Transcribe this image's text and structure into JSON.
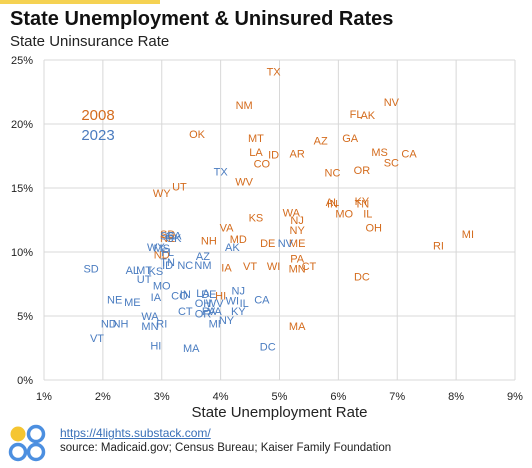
{
  "title": "State Unemployment & Uninsured Rates",
  "subtitle": "State Uninsurance Rate",
  "footer": {
    "link": "https://4lights.substack.com/",
    "source": "source: Madicaid.gov; Census Bureau; Kaiser Family Foundation"
  },
  "colors": {
    "2008": "#d46c1e",
    "2023": "#4a7cc0",
    "grid": "#d8d8d8",
    "logo_yellow": "#f5c531",
    "logo_blue": "#4c8fe0"
  },
  "chart_data": {
    "type": "scatter",
    "title": "State Unemployment & Uninsured Rates",
    "xlabel": "State Unemployment Rate",
    "ylabel": "State Uninsurance Rate",
    "xlim": [
      0.01,
      0.09
    ],
    "ylim": [
      0,
      0.25
    ],
    "x_ticks": [
      "1%",
      "2%",
      "3%",
      "4%",
      "5%",
      "6%",
      "7%",
      "8%",
      "9%"
    ],
    "y_ticks": [
      "0%",
      "5%",
      "10%",
      "15%",
      "20%",
      "25%"
    ],
    "grid": true,
    "legend_placement": "upper-left",
    "series": [
      {
        "name": "2008",
        "color": "#d46c1e",
        "points": [
          {
            "label": "TX",
            "x": 0.049,
            "y": 0.241
          },
          {
            "label": "NV",
            "x": 0.069,
            "y": 0.217
          },
          {
            "label": "NM",
            "x": 0.044,
            "y": 0.215
          },
          {
            "label": "FL",
            "x": 0.063,
            "y": 0.208
          },
          {
            "label": "AK",
            "x": 0.065,
            "y": 0.207
          },
          {
            "label": "OK",
            "x": 0.036,
            "y": 0.192
          },
          {
            "label": "MT",
            "x": 0.046,
            "y": 0.189
          },
          {
            "label": "GA",
            "x": 0.062,
            "y": 0.189
          },
          {
            "label": "AZ",
            "x": 0.057,
            "y": 0.187
          },
          {
            "label": "MS",
            "x": 0.067,
            "y": 0.178
          },
          {
            "label": "LA",
            "x": 0.046,
            "y": 0.178
          },
          {
            "label": "CA",
            "x": 0.072,
            "y": 0.177
          },
          {
            "label": "ID",
            "x": 0.049,
            "y": 0.176
          },
          {
            "label": "AR",
            "x": 0.053,
            "y": 0.177
          },
          {
            "label": "CO",
            "x": 0.047,
            "y": 0.169
          },
          {
            "label": "SC",
            "x": 0.069,
            "y": 0.17
          },
          {
            "label": "OR",
            "x": 0.064,
            "y": 0.164
          },
          {
            "label": "NC",
            "x": 0.059,
            "y": 0.162
          },
          {
            "label": "WV",
            "x": 0.044,
            "y": 0.155
          },
          {
            "label": "UT",
            "x": 0.033,
            "y": 0.151
          },
          {
            "label": "WY",
            "x": 0.03,
            "y": 0.146
          },
          {
            "label": "AL",
            "x": 0.059,
            "y": 0.139
          },
          {
            "label": "KY",
            "x": 0.064,
            "y": 0.14
          },
          {
            "label": "IN",
            "x": 0.059,
            "y": 0.138
          },
          {
            "label": "TN",
            "x": 0.064,
            "y": 0.138
          },
          {
            "label": "WA",
            "x": 0.052,
            "y": 0.131
          },
          {
            "label": "MO",
            "x": 0.061,
            "y": 0.13
          },
          {
            "label": "IL",
            "x": 0.065,
            "y": 0.13
          },
          {
            "label": "KS",
            "x": 0.046,
            "y": 0.127
          },
          {
            "label": "NJ",
            "x": 0.053,
            "y": 0.125
          },
          {
            "label": "OH",
            "x": 0.066,
            "y": 0.119
          },
          {
            "label": "MI",
            "x": 0.082,
            "y": 0.114
          },
          {
            "label": "VA",
            "x": 0.041,
            "y": 0.119
          },
          {
            "label": "NY",
            "x": 0.053,
            "y": 0.117
          },
          {
            "label": "SD",
            "x": 0.031,
            "y": 0.114
          },
          {
            "label": "NE",
            "x": 0.031,
            "y": 0.111
          },
          {
            "label": "NH",
            "x": 0.038,
            "y": 0.109
          },
          {
            "label": "MD",
            "x": 0.043,
            "y": 0.11
          },
          {
            "label": "ME",
            "x": 0.053,
            "y": 0.107
          },
          {
            "label": "DE",
            "x": 0.048,
            "y": 0.107
          },
          {
            "label": "RI",
            "x": 0.077,
            "y": 0.105
          },
          {
            "label": "ND",
            "x": 0.03,
            "y": 0.098
          },
          {
            "label": "PA",
            "x": 0.053,
            "y": 0.095
          },
          {
            "label": "IA",
            "x": 0.041,
            "y": 0.088
          },
          {
            "label": "VT",
            "x": 0.045,
            "y": 0.089
          },
          {
            "label": "WI",
            "x": 0.049,
            "y": 0.089
          },
          {
            "label": "CT",
            "x": 0.055,
            "y": 0.089
          },
          {
            "label": "MN",
            "x": 0.053,
            "y": 0.087
          },
          {
            "label": "DC",
            "x": 0.064,
            "y": 0.081
          },
          {
            "label": "HI",
            "x": 0.04,
            "y": 0.066
          },
          {
            "label": "MA",
            "x": 0.053,
            "y": 0.042
          }
        ]
      },
      {
        "name": "2023",
        "color": "#4a7cc0",
        "points": [
          {
            "label": "TX",
            "x": 0.04,
            "y": 0.163
          },
          {
            "label": "SC",
            "x": 0.031,
            "y": 0.113
          },
          {
            "label": "GA",
            "x": 0.032,
            "y": 0.113
          },
          {
            "label": "OK",
            "x": 0.032,
            "y": 0.111
          },
          {
            "label": "WY",
            "x": 0.029,
            "y": 0.104
          },
          {
            "label": "MS",
            "x": 0.03,
            "y": 0.103
          },
          {
            "label": "FL",
            "x": 0.031,
            "y": 0.1
          },
          {
            "label": "NV",
            "x": 0.051,
            "y": 0.107
          },
          {
            "label": "AK",
            "x": 0.042,
            "y": 0.104
          },
          {
            "label": "AZ",
            "x": 0.037,
            "y": 0.097
          },
          {
            "label": "SD",
            "x": 0.018,
            "y": 0.087
          },
          {
            "label": "AL",
            "x": 0.025,
            "y": 0.086
          },
          {
            "label": "MT",
            "x": 0.027,
            "y": 0.086
          },
          {
            "label": "KS",
            "x": 0.029,
            "y": 0.085
          },
          {
            "label": "TN",
            "x": 0.031,
            "y": 0.092
          },
          {
            "label": "UT",
            "x": 0.027,
            "y": 0.079
          },
          {
            "label": "ID",
            "x": 0.031,
            "y": 0.09
          },
          {
            "label": "NC",
            "x": 0.034,
            "y": 0.09
          },
          {
            "label": "NM",
            "x": 0.037,
            "y": 0.09
          },
          {
            "label": "MO",
            "x": 0.03,
            "y": 0.074
          },
          {
            "label": "CO",
            "x": 0.033,
            "y": 0.066
          },
          {
            "label": "IN",
            "x": 0.034,
            "y": 0.067
          },
          {
            "label": "LA",
            "x": 0.037,
            "y": 0.068
          },
          {
            "label": "DE",
            "x": 0.038,
            "y": 0.067
          },
          {
            "label": "NJ",
            "x": 0.043,
            "y": 0.07
          },
          {
            "label": "NE",
            "x": 0.022,
            "y": 0.063
          },
          {
            "label": "ND",
            "x": 0.021,
            "y": 0.044
          },
          {
            "label": "VT",
            "x": 0.019,
            "y": 0.033
          },
          {
            "label": "NH",
            "x": 0.023,
            "y": 0.044
          },
          {
            "label": "IA",
            "x": 0.029,
            "y": 0.065
          },
          {
            "label": "ME",
            "x": 0.025,
            "y": 0.061
          },
          {
            "label": "WA",
            "x": 0.028,
            "y": 0.05
          },
          {
            "label": "MN",
            "x": 0.028,
            "y": 0.042
          },
          {
            "label": "RI",
            "x": 0.03,
            "y": 0.044
          },
          {
            "label": "HI",
            "x": 0.029,
            "y": 0.027
          },
          {
            "label": "CT",
            "x": 0.034,
            "y": 0.054
          },
          {
            "label": "OH",
            "x": 0.037,
            "y": 0.06
          },
          {
            "label": "WV",
            "x": 0.039,
            "y": 0.06
          },
          {
            "label": "PA",
            "x": 0.038,
            "y": 0.054
          },
          {
            "label": "OR",
            "x": 0.037,
            "y": 0.052
          },
          {
            "label": "VA",
            "x": 0.039,
            "y": 0.054
          },
          {
            "label": "IL",
            "x": 0.044,
            "y": 0.06
          },
          {
            "label": "KY",
            "x": 0.043,
            "y": 0.054
          },
          {
            "label": "CA",
            "x": 0.047,
            "y": 0.063
          },
          {
            "label": "WI",
            "x": 0.042,
            "y": 0.062
          },
          {
            "label": "MI",
            "x": 0.039,
            "y": 0.044
          },
          {
            "label": "NY",
            "x": 0.041,
            "y": 0.047
          },
          {
            "label": "MA",
            "x": 0.035,
            "y": 0.025
          },
          {
            "label": "DC",
            "x": 0.048,
            "y": 0.026
          }
        ]
      }
    ]
  }
}
